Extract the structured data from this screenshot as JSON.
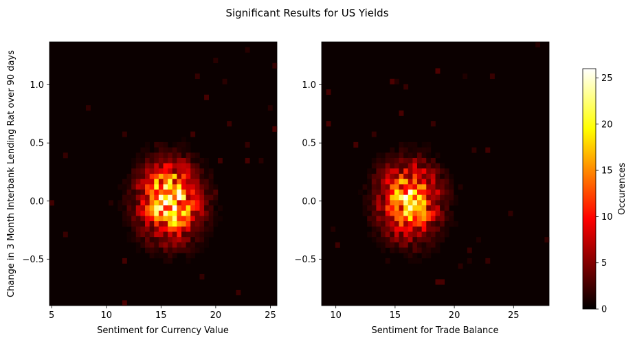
{
  "figure": {
    "suptitle": "Significant Results for US Yields"
  },
  "colormap": {
    "name": "hot",
    "stops": [
      "#000000",
      "#0b0000",
      "#ff0000",
      "#ffff00",
      "#ffffff"
    ]
  },
  "colorbar": {
    "label": "Occurences",
    "range": [
      0,
      26
    ],
    "ticks": [
      0,
      5,
      10,
      15,
      20,
      25
    ],
    "tick_labels": [
      "0",
      "5",
      "10",
      "15",
      "20",
      "25"
    ]
  },
  "chart_data": [
    {
      "type": "heatmap",
      "title": "",
      "xlabel": "Sentiment for Currency Value",
      "ylabel": "Change in 3 Month Interbank Lending Rat over 90 days",
      "xlim": [
        4.8,
        25.6
      ],
      "ylim": [
        -0.9,
        1.37
      ],
      "xticks": [
        5,
        10,
        15,
        20,
        25
      ],
      "xtick_labels": [
        "5",
        "10",
        "15",
        "20",
        "25"
      ],
      "yticks": [
        -0.5,
        0.0,
        0.5,
        1.0
      ],
      "ytick_labels": [
        "−0.5",
        "0.0",
        "0.5",
        "1.0"
      ],
      "bins": [
        50,
        50
      ],
      "cluster_center": [
        15.8,
        0.0
      ],
      "peak_count": 26,
      "grid": false
    },
    {
      "type": "heatmap",
      "title": "",
      "xlabel": "Sentiment for Trade Balance",
      "ylabel": "",
      "xlim": [
        8.8,
        28.0
      ],
      "ylim": [
        -0.9,
        1.37
      ],
      "xticks": [
        10,
        15,
        20,
        25
      ],
      "xtick_labels": [
        "10",
        "15",
        "20",
        "25"
      ],
      "yticks": [
        -0.5,
        0.0,
        0.5,
        1.0
      ],
      "ytick_labels": [
        "−0.5",
        "0.0",
        "0.5",
        "1.0"
      ],
      "bins": [
        50,
        50
      ],
      "cluster_center": [
        16.2,
        0.0
      ],
      "peak_count": 22,
      "grid": false
    }
  ]
}
